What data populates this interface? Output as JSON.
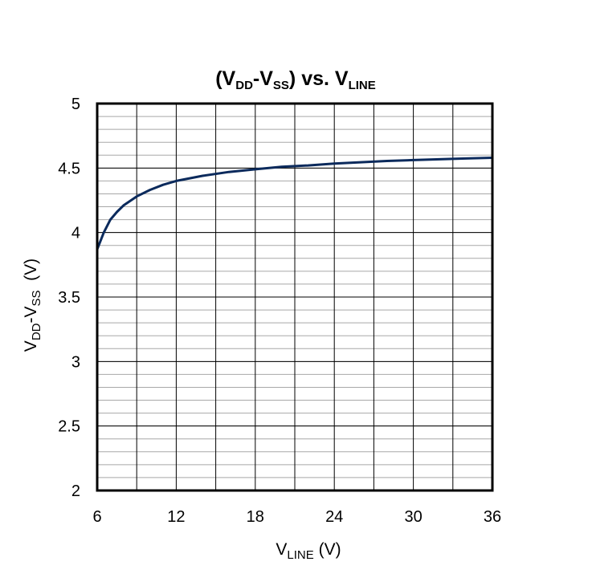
{
  "chart_data": {
    "type": "line",
    "title": {
      "main_a": "(V",
      "sub_a": "DD",
      "main_b": "-V",
      "sub_b": "SS",
      "main_c": ") vs. V",
      "sub_c": "LINE"
    },
    "xlabel": {
      "main": "V",
      "sub": "LINE",
      "suffix": " (V)"
    },
    "ylabel": {
      "main_a": "V",
      "sub_a": "DD",
      "main_b": "-V",
      "sub_b": "SS",
      "suffix": "  (V)"
    },
    "xlim": [
      6,
      36
    ],
    "ylim": [
      2,
      5
    ],
    "x_ticks": [
      6,
      12,
      18,
      24,
      30,
      36
    ],
    "x_tick_labels": [
      "6",
      "12",
      "18",
      "24",
      "30",
      "36"
    ],
    "y_ticks": [
      2,
      2.5,
      3,
      3.5,
      4,
      4.5,
      5
    ],
    "y_tick_labels": [
      "2",
      "2.5",
      "3",
      "3.5",
      "4",
      "4.5",
      "5"
    ],
    "grid": true,
    "legend": "none",
    "series_color": "#0b2a5c",
    "series": [
      {
        "x": [
          6,
          6.5,
          7,
          7.5,
          8,
          9,
          10,
          11,
          12,
          14,
          16,
          18,
          20,
          22,
          24,
          26,
          28,
          30,
          32,
          34,
          36
        ],
        "y": [
          3.87,
          4.0,
          4.1,
          4.16,
          4.21,
          4.28,
          4.33,
          4.37,
          4.4,
          4.44,
          4.47,
          4.49,
          4.51,
          4.52,
          4.535,
          4.545,
          4.555,
          4.562,
          4.568,
          4.574,
          4.58
        ]
      }
    ]
  }
}
